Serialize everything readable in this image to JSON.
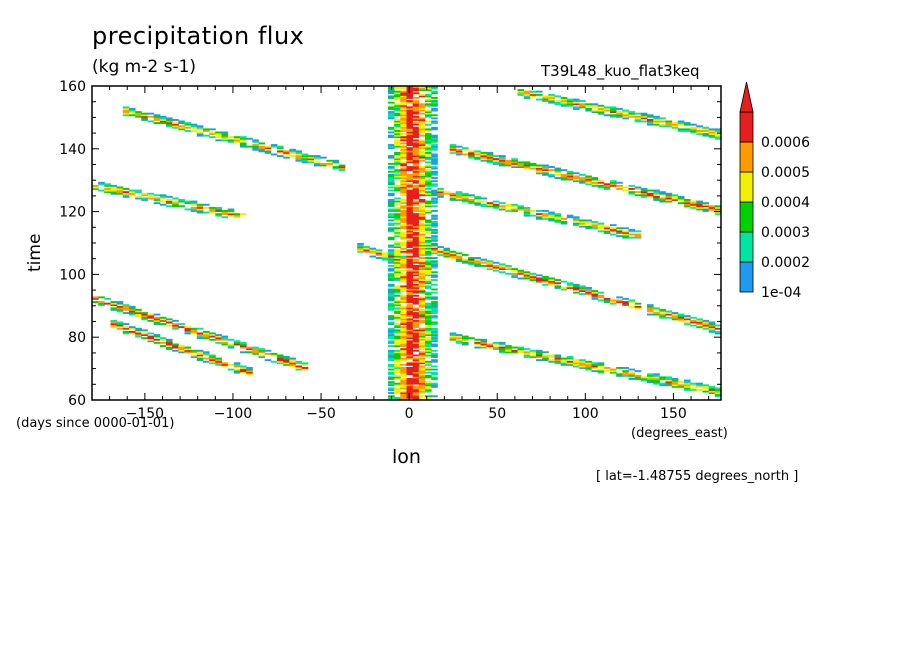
{
  "header": {
    "title": "precipitation flux",
    "units": "(kg m-2 s-1)",
    "run_name": "T39L48_kuo_flat3keq"
  },
  "labels": {
    "xlabel": "lon",
    "ylabel": "time",
    "time_units": "(days since 0000-01-01)",
    "x_units": "(degrees_east)",
    "slice_note": "[ lat=-1.48755 degrees_north ]"
  },
  "chart_data": {
    "type": "heatmap",
    "title": "precipitation flux",
    "subtitle": "(kg m-2 s-1)",
    "xlabel": "lon",
    "ylabel": "time",
    "xlim": [
      -180,
      177
    ],
    "ylim": [
      60,
      160
    ],
    "xticks": [
      -150,
      -100,
      -50,
      0,
      50,
      100,
      150
    ],
    "yticks": [
      60,
      80,
      100,
      120,
      140,
      160
    ],
    "colorbar": {
      "levels": [
        "1e-04",
        "0.0002",
        "0.0003",
        "0.0004",
        "0.0005",
        "0.0006"
      ],
      "colors": [
        "#1e9bf0",
        "#00e6a0",
        "#00d200",
        "#f0f000",
        "#ff9b00",
        "#e61e1e"
      ],
      "extend": "max"
    },
    "features": {
      "stationary_band": {
        "lon_center": 0,
        "lon_halfwidth": 15,
        "time_range": [
          60,
          160
        ],
        "peak_level": "0.0006"
      },
      "eastward_streaks": [
        {
          "lon_start": -180,
          "time_start": 128,
          "lon_end": -95,
          "time_end": 118,
          "peak_level": "0.0005"
        },
        {
          "lon_start": -165,
          "time_start": 152,
          "lon_end": -40,
          "time_end": 134,
          "peak_level": "0.0005"
        },
        {
          "lon_start": -180,
          "time_start": 92,
          "lon_end": -60,
          "time_end": 70,
          "peak_level": "0.0006"
        },
        {
          "lon_start": -170,
          "time_start": 84,
          "lon_end": -90,
          "time_end": 68,
          "peak_level": "0.0006"
        },
        {
          "lon_start": 10,
          "time_start": 108,
          "lon_end": 177,
          "time_end": 82,
          "peak_level": "0.0006"
        },
        {
          "lon_start": 20,
          "time_start": 140,
          "lon_end": 177,
          "time_end": 120,
          "peak_level": "0.0006"
        },
        {
          "lon_start": 15,
          "time_start": 126,
          "lon_end": 130,
          "time_end": 112,
          "peak_level": "0.0005"
        },
        {
          "lon_start": 60,
          "time_start": 158,
          "lon_end": 177,
          "time_end": 144,
          "peak_level": "0.0005"
        },
        {
          "lon_start": 20,
          "time_start": 80,
          "lon_end": 177,
          "time_end": 62,
          "peak_level": "0.0005"
        },
        {
          "lon_start": -30,
          "time_start": 108,
          "lon_end": 10,
          "time_end": 102,
          "peak_level": "0.0005"
        }
      ]
    }
  }
}
